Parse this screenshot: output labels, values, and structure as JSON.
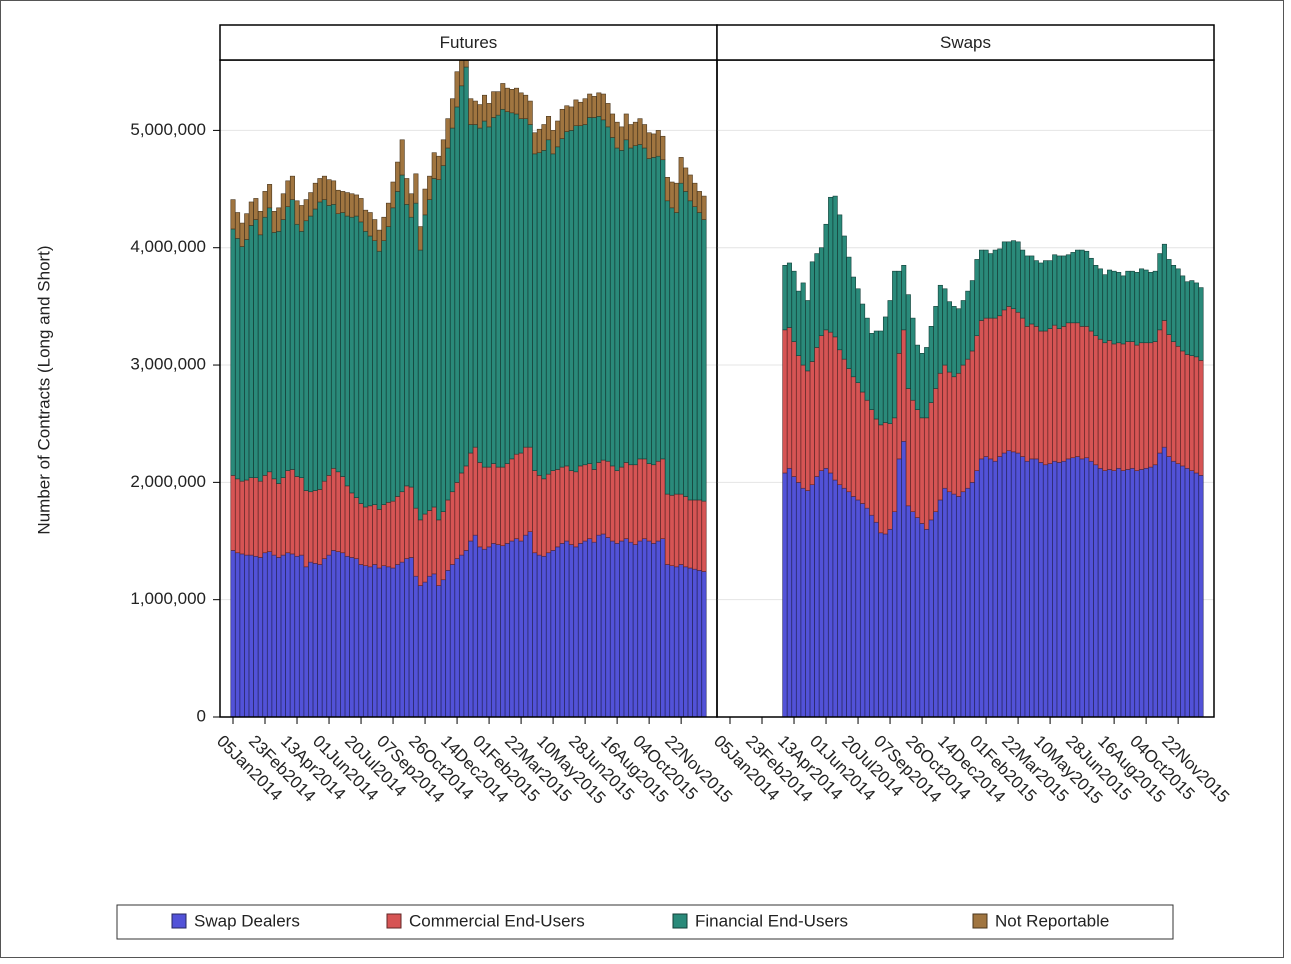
{
  "chart_data": {
    "type": "bar",
    "stacked": true,
    "ylabel": "Number of Contracts (Long and Short)",
    "ylim": [
      0,
      5600000
    ],
    "yticks": [
      0,
      {
        "value": 1000000,
        "label": "1,000,000"
      },
      {
        "value": 2000000,
        "label": "2,000,000"
      },
      {
        "value": 3000000,
        "label": "3,000,000"
      },
      {
        "value": 4000000,
        "label": "4,000,000"
      },
      {
        "value": 5000000,
        "label": "5,000,000"
      }
    ],
    "grid": true,
    "legend": "bottom",
    "categories": [
      "05Jan2014",
      null,
      null,
      null,
      null,
      null,
      null,
      "23Feb2014",
      null,
      null,
      null,
      null,
      null,
      null,
      "13Apr2014",
      null,
      null,
      null,
      null,
      null,
      null,
      "01Jun2014",
      null,
      null,
      null,
      null,
      null,
      null,
      "20Jul2014",
      null,
      null,
      null,
      null,
      null,
      null,
      "07Sep2014",
      null,
      null,
      null,
      null,
      null,
      null,
      "26Oct2014",
      null,
      null,
      null,
      null,
      null,
      null,
      "14Dec2014",
      null,
      null,
      null,
      null,
      null,
      null,
      "01Feb2015",
      null,
      null,
      null,
      null,
      null,
      null,
      "22Mar2015",
      null,
      null,
      null,
      null,
      null,
      null,
      "10May2015",
      null,
      null,
      null,
      null,
      null,
      null,
      "28Jun2015",
      null,
      null,
      null,
      null,
      null,
      null,
      "16Aug2015",
      null,
      null,
      null,
      null,
      null,
      null,
      "04Oct2015",
      null,
      null,
      null,
      null,
      null,
      null,
      "22Nov2015",
      null,
      null,
      null,
      null,
      null
    ],
    "series": [
      {
        "name": "Swap Dealers",
        "color": "#5252d8"
      },
      {
        "name": "Commercial End-Users",
        "color": "#d65454"
      },
      {
        "name": "Financial End-Users",
        "color": "#2a8a7a"
      },
      {
        "name": "Not Reportable",
        "color": "#a07540"
      }
    ],
    "panels": [
      {
        "title": "Futures",
        "values": [
          [
            1420000,
            1400000,
            1390000,
            1380000,
            1380000,
            1370000,
            1360000,
            1400000,
            1410000,
            1380000,
            1360000,
            1380000,
            1400000,
            1390000,
            1370000,
            1380000,
            1280000,
            1320000,
            1310000,
            1300000,
            1350000,
            1380000,
            1420000,
            1410000,
            1400000,
            1370000,
            1360000,
            1350000,
            1300000,
            1290000,
            1280000,
            1300000,
            1270000,
            1290000,
            1280000,
            1270000,
            1300000,
            1320000,
            1350000,
            1360000,
            1200000,
            1120000,
            1150000,
            1200000,
            1220000,
            1120000,
            1170000,
            1250000,
            1300000,
            1350000,
            1380000,
            1420000,
            1500000,
            1550000,
            1450000,
            1430000,
            1450000,
            1480000,
            1470000,
            1460000,
            1480000,
            1500000,
            1520000,
            1500000,
            1550000,
            1580000,
            1400000,
            1380000,
            1370000,
            1400000,
            1420000,
            1450000,
            1480000,
            1500000,
            1470000,
            1450000,
            1480000,
            1500000,
            1520000,
            1490000,
            1550000,
            1560000,
            1530000,
            1500000,
            1480000,
            1500000,
            1520000,
            1490000,
            1470000,
            1500000,
            1520000,
            1500000,
            1480000,
            1500000,
            1520000,
            1300000,
            1290000,
            1280000,
            1300000,
            1280000,
            1270000,
            1260000,
            1250000,
            1240000
          ],
          [
            640000,
            630000,
            620000,
            640000,
            660000,
            670000,
            650000,
            660000,
            680000,
            650000,
            630000,
            660000,
            700000,
            720000,
            680000,
            660000,
            650000,
            600000,
            620000,
            640000,
            660000,
            680000,
            700000,
            680000,
            650000,
            600000,
            550000,
            520000,
            520000,
            500000,
            520000,
            510000,
            500000,
            520000,
            550000,
            570000,
            580000,
            600000,
            620000,
            600000,
            580000,
            560000,
            580000,
            560000,
            570000,
            560000,
            580000,
            600000,
            620000,
            650000,
            700000,
            720000,
            750000,
            750000,
            720000,
            700000,
            680000,
            680000,
            660000,
            670000,
            680000,
            700000,
            720000,
            750000,
            750000,
            720000,
            700000,
            680000,
            660000,
            670000,
            680000,
            660000,
            650000,
            640000,
            630000,
            640000,
            660000,
            650000,
            640000,
            620000,
            620000,
            630000,
            650000,
            640000,
            620000,
            630000,
            650000,
            660000,
            680000,
            700000,
            680000,
            660000,
            670000,
            680000,
            680000,
            600000,
            600000,
            620000,
            600000,
            600000,
            580000,
            590000,
            600000,
            600000
          ],
          [
            2100000,
            2050000,
            2000000,
            2050000,
            2150000,
            2200000,
            2100000,
            2200000,
            2250000,
            2100000,
            2150000,
            2200000,
            2250000,
            2300000,
            2150000,
            2100000,
            2300000,
            2350000,
            2400000,
            2450000,
            2400000,
            2300000,
            2250000,
            2200000,
            2250000,
            2300000,
            2350000,
            2400000,
            2400000,
            2350000,
            2300000,
            2250000,
            2200000,
            2250000,
            2350000,
            2500000,
            2600000,
            2700000,
            2400000,
            2300000,
            2600000,
            2300000,
            2550000,
            2650000,
            2800000,
            2900000,
            2950000,
            3000000,
            3100000,
            3200000,
            3300000,
            3400000,
            2800000,
            2750000,
            2850000,
            2950000,
            2900000,
            2950000,
            3000000,
            3050000,
            3000000,
            2950000,
            2900000,
            2850000,
            2800000,
            2750000,
            2700000,
            2750000,
            2800000,
            2850000,
            2700000,
            2750000,
            2800000,
            2850000,
            2900000,
            2950000,
            2900000,
            2900000,
            2950000,
            3000000,
            2950000,
            2900000,
            2850000,
            2800000,
            2750000,
            2700000,
            2750000,
            2700000,
            2720000,
            2680000,
            2650000,
            2600000,
            2620000,
            2600000,
            2550000,
            2500000,
            2450000,
            2400000,
            2650000,
            2600000,
            2550000,
            2500000,
            2450000,
            2400000
          ],
          [
            250000,
            220000,
            200000,
            220000,
            200000,
            180000,
            200000,
            220000,
            200000,
            180000,
            200000,
            220000,
            220000,
            200000,
            200000,
            220000,
            180000,
            200000,
            220000,
            200000,
            200000,
            220000,
            200000,
            200000,
            180000,
            200000,
            200000,
            180000,
            200000,
            180000,
            200000,
            180000,
            180000,
            200000,
            200000,
            220000,
            250000,
            300000,
            220000,
            200000,
            250000,
            200000,
            220000,
            200000,
            220000,
            200000,
            220000,
            250000,
            250000,
            300000,
            250000,
            250000,
            220000,
            200000,
            200000,
            220000,
            200000,
            220000,
            200000,
            220000,
            200000,
            200000,
            220000,
            220000,
            200000,
            200000,
            180000,
            200000,
            220000,
            200000,
            200000,
            220000,
            250000,
            220000,
            200000,
            220000,
            200000,
            220000,
            200000,
            180000,
            200000,
            220000,
            200000,
            200000,
            220000,
            200000,
            220000,
            200000,
            200000,
            220000,
            200000,
            220000,
            200000,
            220000,
            200000,
            200000,
            220000,
            250000,
            220000,
            200000,
            220000,
            200000,
            180000,
            200000
          ]
        ]
      },
      {
        "title": "Swaps",
        "values": [
          [
            null,
            null,
            null,
            null,
            null,
            null,
            null,
            null,
            null,
            null,
            null,
            null,
            2080000,
            2120000,
            2050000,
            2000000,
            1950000,
            1930000,
            1980000,
            2050000,
            2100000,
            2120000,
            2080000,
            2020000,
            1980000,
            1950000,
            1920000,
            1880000,
            1850000,
            1820000,
            1780000,
            1720000,
            1660000,
            1570000,
            1560000,
            1600000,
            1750000,
            2200000,
            2350000,
            1800000,
            1750000,
            1700000,
            1650000,
            1600000,
            1680000,
            1750000,
            1850000,
            1950000,
            1920000,
            1900000,
            1880000,
            1920000,
            1950000,
            2000000,
            2100000,
            2200000,
            2220000,
            2200000,
            2180000,
            2220000,
            2250000,
            2270000,
            2260000,
            2250000,
            2220000,
            2180000,
            2200000,
            2200000,
            2170000,
            2150000,
            2160000,
            2180000,
            2170000,
            2180000,
            2200000,
            2210000,
            2220000,
            2200000,
            2210000,
            2180000,
            2150000,
            2120000,
            2100000,
            2110000,
            2100000,
            2120000,
            2100000,
            2110000,
            2120000,
            2100000,
            2110000,
            2120000,
            2130000,
            2150000,
            2250000,
            2300000,
            2220000,
            2180000,
            2160000,
            2140000,
            2120000,
            2100000,
            2080000,
            2060000
          ],
          [
            null,
            null,
            null,
            null,
            null,
            null,
            null,
            null,
            null,
            null,
            null,
            null,
            1220000,
            1200000,
            1150000,
            1080000,
            1050000,
            1020000,
            1050000,
            1100000,
            1150000,
            1180000,
            1200000,
            1220000,
            1150000,
            1100000,
            1050000,
            1020000,
            1000000,
            950000,
            920000,
            900000,
            880000,
            920000,
            950000,
            900000,
            800000,
            900000,
            950000,
            1000000,
            950000,
            920000,
            900000,
            950000,
            1000000,
            1050000,
            1080000,
            1050000,
            1020000,
            1000000,
            1050000,
            1080000,
            1100000,
            1120000,
            1150000,
            1180000,
            1180000,
            1200000,
            1220000,
            1200000,
            1220000,
            1230000,
            1220000,
            1200000,
            1180000,
            1150000,
            1150000,
            1130000,
            1120000,
            1140000,
            1150000,
            1160000,
            1140000,
            1150000,
            1160000,
            1150000,
            1140000,
            1130000,
            1120000,
            1110000,
            1100000,
            1100000,
            1090000,
            1100000,
            1080000,
            1070000,
            1080000,
            1090000,
            1080000,
            1070000,
            1080000,
            1070000,
            1060000,
            1050000,
            1050000,
            1080000,
            1040000,
            1020000,
            1000000,
            980000,
            970000,
            980000,
            990000,
            980000
          ],
          [
            null,
            null,
            null,
            null,
            null,
            null,
            null,
            null,
            null,
            null,
            null,
            null,
            550000,
            550000,
            600000,
            550000,
            700000,
            600000,
            850000,
            800000,
            750000,
            900000,
            1150000,
            1200000,
            1150000,
            1050000,
            950000,
            850000,
            800000,
            750000,
            700000,
            650000,
            750000,
            800000,
            900000,
            1050000,
            1250000,
            700000,
            550000,
            800000,
            700000,
            550000,
            550000,
            600000,
            650000,
            700000,
            750000,
            650000,
            600000,
            600000,
            550000,
            550000,
            580000,
            600000,
            650000,
            600000,
            580000,
            550000,
            580000,
            570000,
            580000,
            550000,
            580000,
            600000,
            580000,
            600000,
            580000,
            560000,
            580000,
            600000,
            580000,
            600000,
            620000,
            600000,
            580000,
            600000,
            620000,
            650000,
            640000,
            620000,
            600000,
            600000,
            580000,
            600000,
            620000,
            600000,
            580000,
            600000,
            600000,
            620000,
            630000,
            620000,
            600000,
            600000,
            650000,
            650000,
            640000,
            650000,
            660000,
            640000,
            620000,
            640000,
            630000,
            620000
          ],
          [
            null,
            null,
            null,
            null,
            null,
            null,
            null,
            null,
            null,
            null,
            null,
            null,
            0,
            0,
            0,
            0,
            0,
            0,
            0,
            0,
            0,
            0,
            0,
            0,
            0,
            0,
            0,
            0,
            0,
            0,
            0,
            0,
            0,
            0,
            0,
            0,
            0,
            0,
            0,
            0,
            0,
            0,
            0,
            0,
            0,
            0,
            0,
            0,
            0,
            0,
            0,
            0,
            0,
            0,
            0,
            0,
            0,
            0,
            0,
            0,
            0,
            0,
            0,
            0,
            0,
            0,
            0,
            0,
            0,
            0,
            0,
            0,
            0,
            0,
            0,
            0,
            0,
            0,
            0,
            0,
            0,
            0,
            0,
            0,
            0,
            0,
            0,
            0,
            0,
            0,
            0,
            0,
            0,
            0,
            0,
            0,
            0,
            0,
            0,
            0,
            0,
            0,
            0,
            0
          ]
        ]
      }
    ]
  }
}
